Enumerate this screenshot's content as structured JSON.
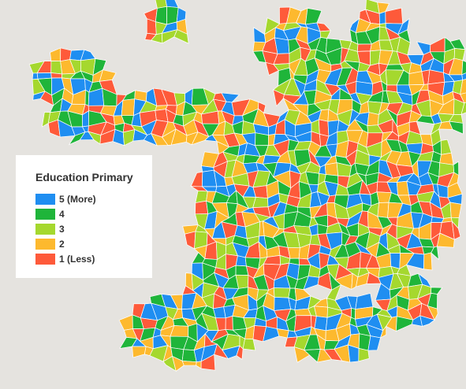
{
  "legend": {
    "title": "Education Primary",
    "items": [
      {
        "label": "5 (More)",
        "color": "#1f8ef1"
      },
      {
        "label": "4",
        "color": "#1fb53a"
      },
      {
        "label": "3",
        "color": "#a5d82e"
      },
      {
        "label": "2",
        "color": "#fdb92e"
      },
      {
        "label": "1 (Less)",
        "color": "#fe5a3a"
      }
    ]
  }
}
